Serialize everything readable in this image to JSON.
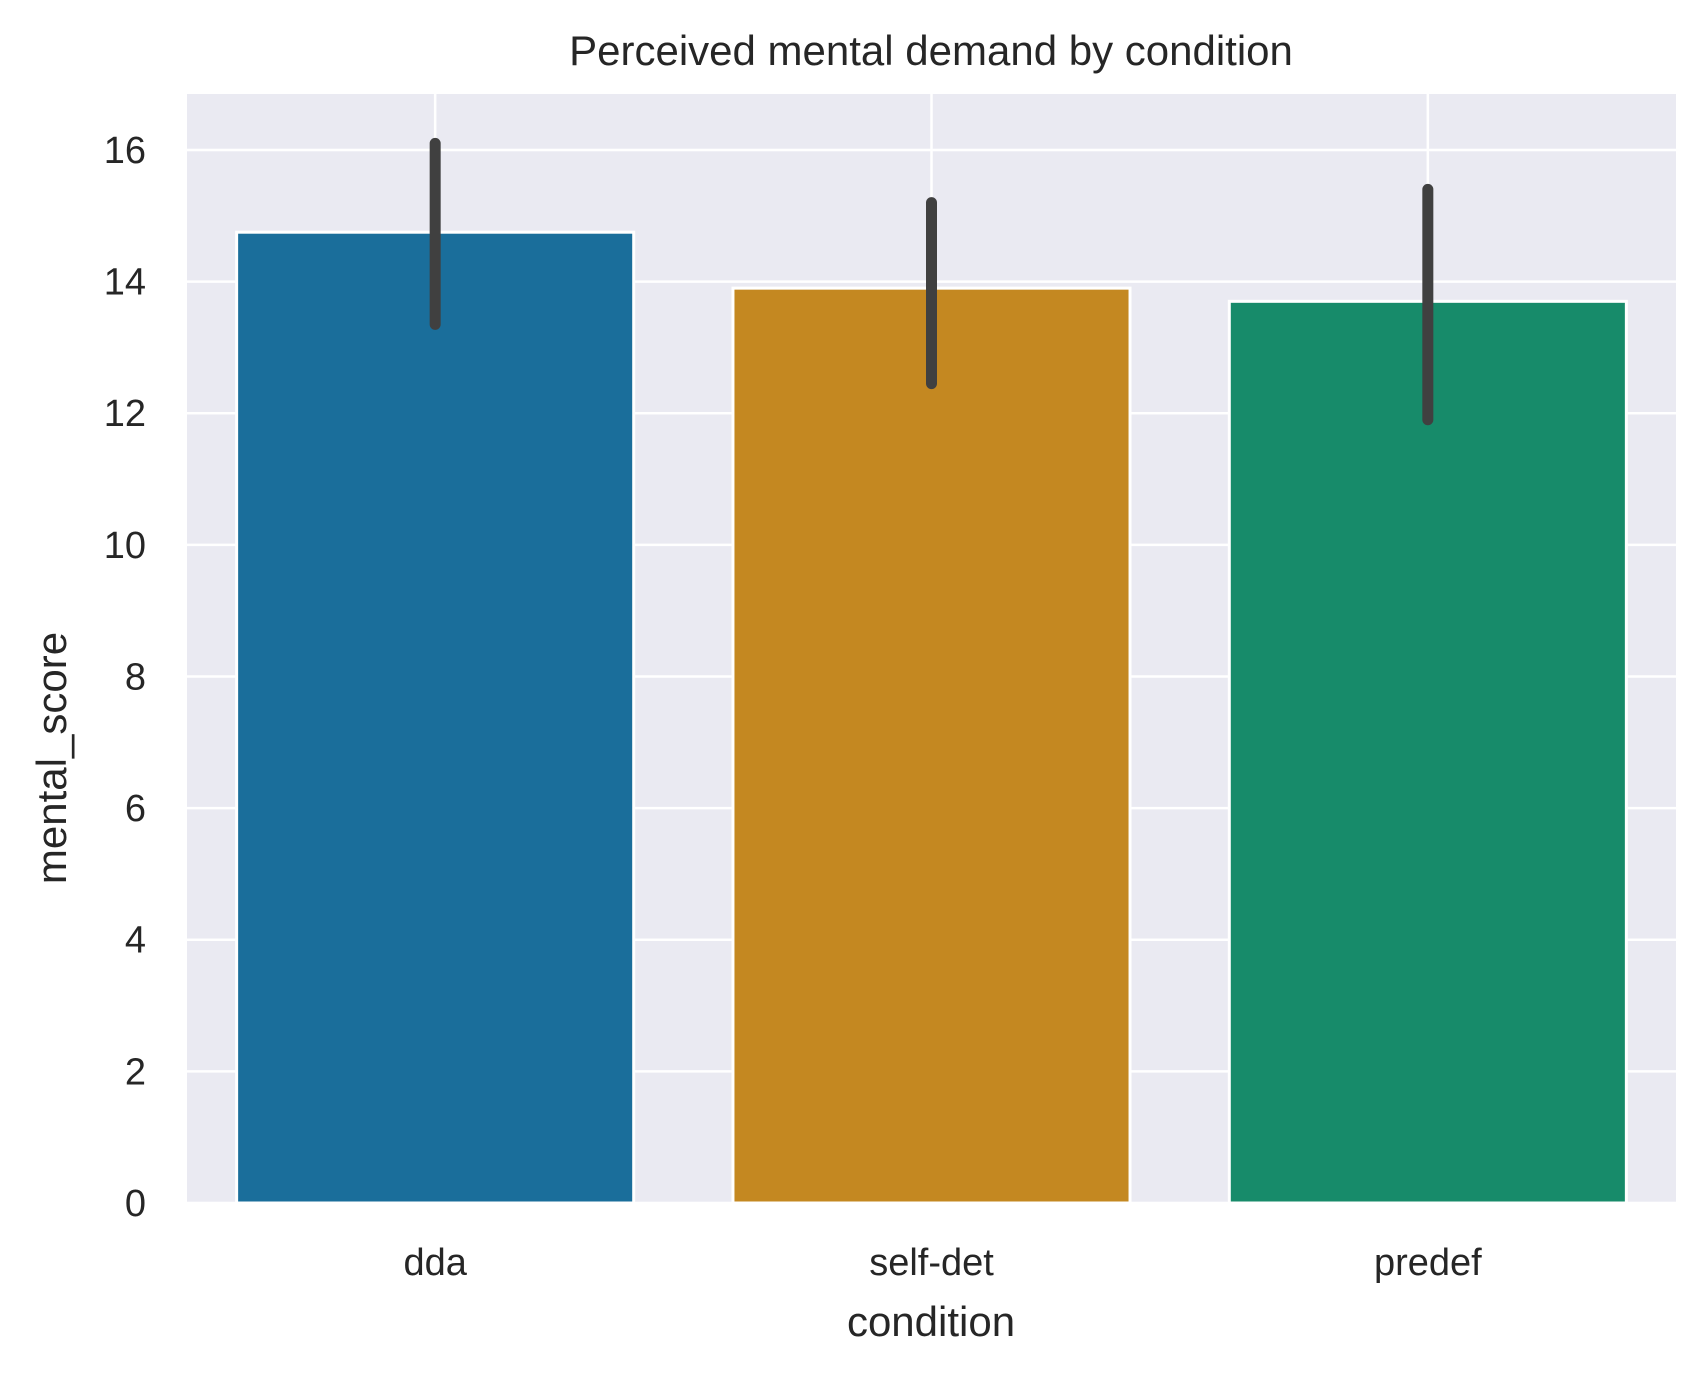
{
  "chart_data": {
    "type": "bar",
    "title": "Perceived mental demand by condition",
    "xlabel": "condition",
    "ylabel": "mental_score",
    "categories": [
      "dda",
      "self-det",
      "predef"
    ],
    "values": [
      14.75,
      13.9,
      13.7
    ],
    "error_bars": [
      {
        "low": 13.35,
        "high": 16.1
      },
      {
        "low": 12.45,
        "high": 15.2
      },
      {
        "low": 11.9,
        "high": 15.4
      }
    ],
    "colors": [
      "#1a6e9b",
      "#c48821",
      "#178b6a"
    ],
    "error_color": "#404040",
    "ylim": [
      0,
      16.85
    ],
    "yticks": [
      0,
      2,
      4,
      6,
      8,
      10,
      12,
      14,
      16
    ],
    "ytick_labels": [
      "0",
      "2",
      "4",
      "6",
      "8",
      "10",
      "12",
      "14",
      "16"
    ],
    "grid": true,
    "plot_background": "#eaeaf2",
    "grid_color": "#ffffff"
  }
}
